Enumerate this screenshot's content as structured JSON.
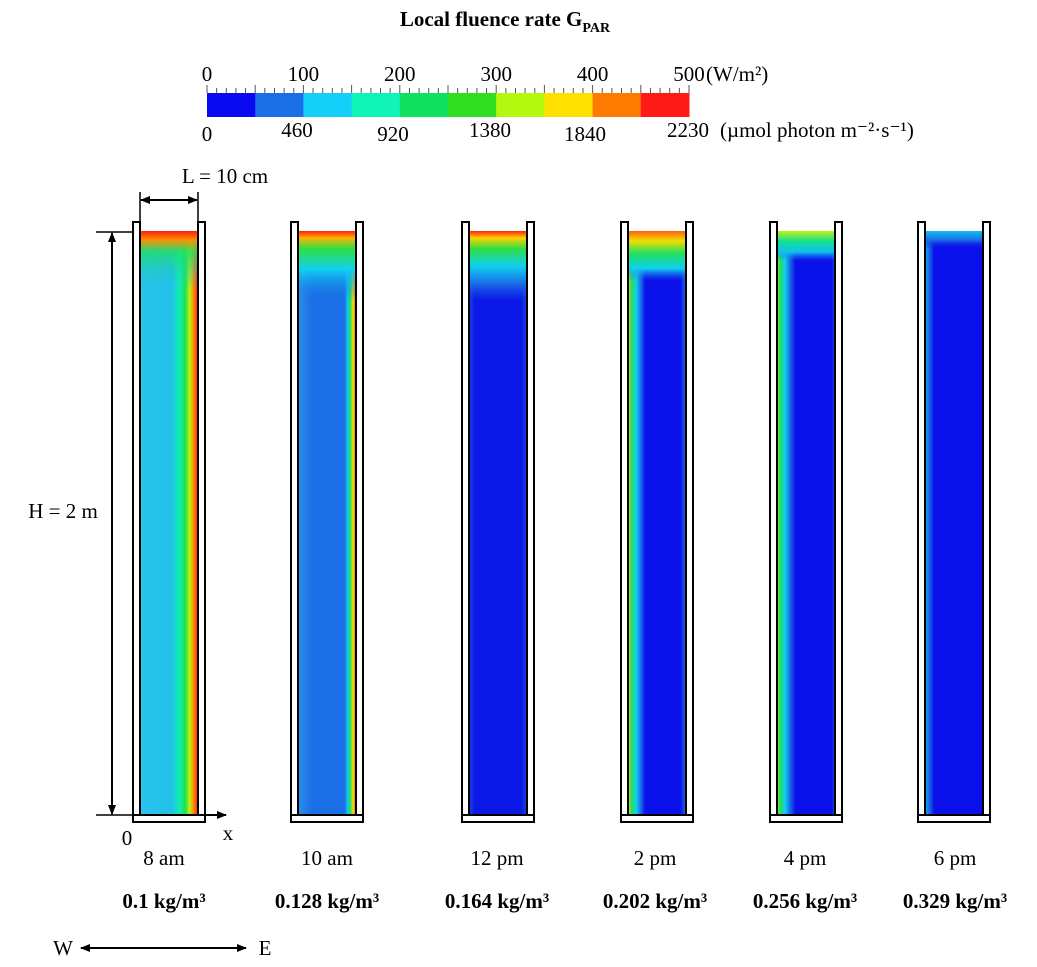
{
  "title": {
    "text": "Local fluence rate G",
    "subscript": "PAR"
  },
  "colorbar": {
    "colors": [
      "#0a0af0",
      "#1a6ee6",
      "#12d0f8",
      "#10f4b8",
      "#10e060",
      "#30e020",
      "#b4f810",
      "#ffe000",
      "#ff7a00",
      "#ff1a1a"
    ],
    "top_ticks": [
      "0",
      "100",
      "200",
      "300",
      "400",
      "500"
    ],
    "top_unit": "(W/m²)",
    "bottom_ticks": [
      "0",
      "460",
      "920",
      "1380",
      "1840",
      "2230"
    ],
    "bottom_unit": "(µmol photon m⁻²·s⁻¹)"
  },
  "dimensions": {
    "width": "L = 10 cm",
    "height": "H = 2 m",
    "origin": "0",
    "x_axis": "x"
  },
  "panels": [
    {
      "time": "8 am",
      "concentration": "0.1 kg/m³"
    },
    {
      "time": "10 am",
      "concentration": "0.128 kg/m³"
    },
    {
      "time": "12 pm",
      "concentration": "0.164 kg/m³"
    },
    {
      "time": "2 pm",
      "concentration": "0.202 kg/m³"
    },
    {
      "time": "4 pm",
      "concentration": "0.256 kg/m³"
    },
    {
      "time": "6 pm",
      "concentration": "0.329 kg/m³"
    }
  ],
  "orientation": {
    "west": "W",
    "east": "E"
  }
}
